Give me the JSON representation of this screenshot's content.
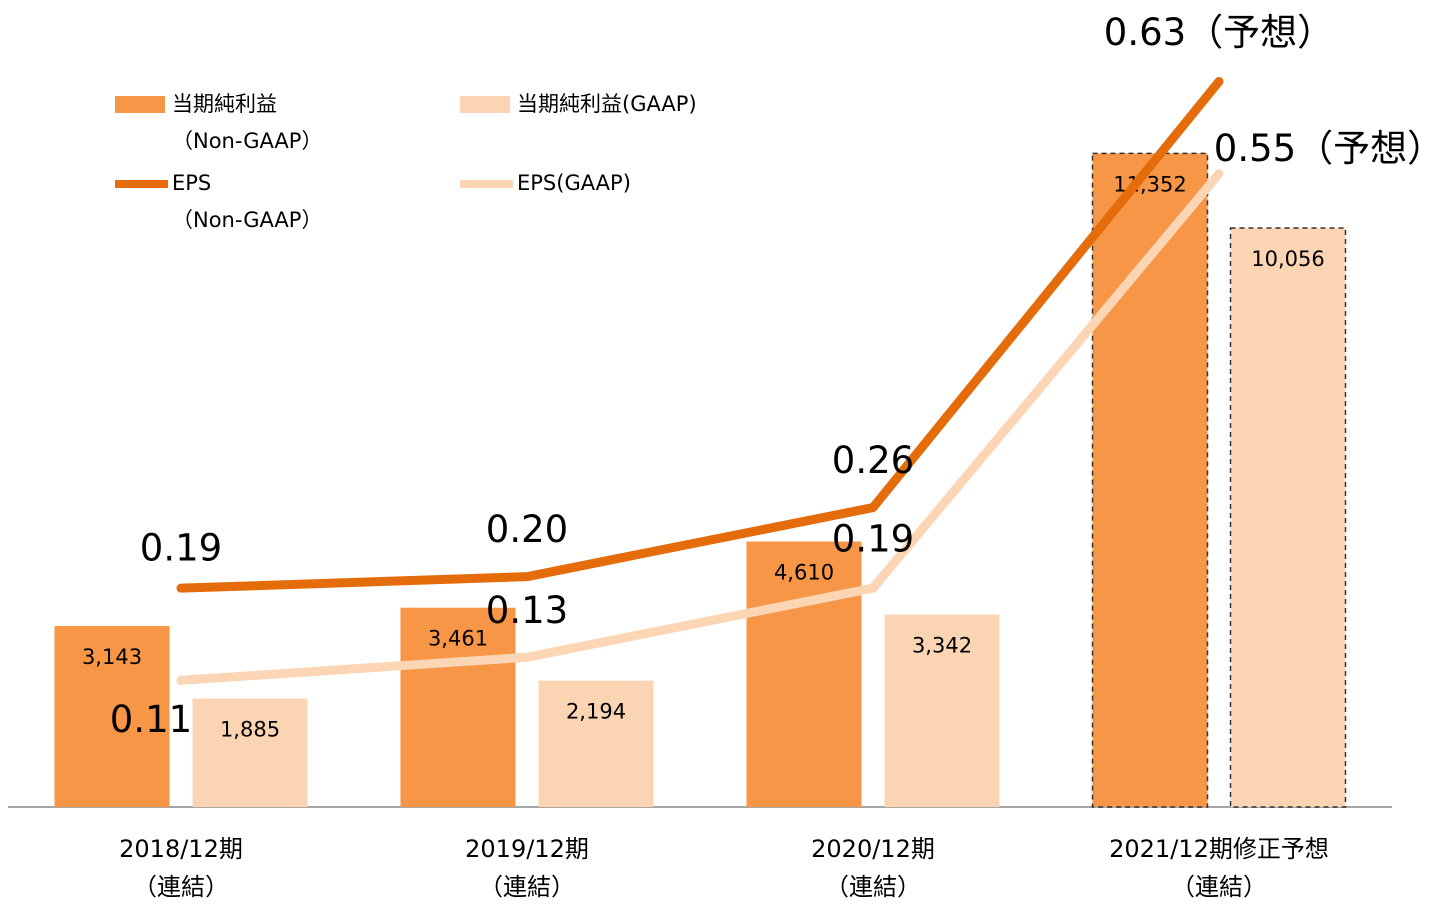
{
  "chart_data": {
    "type": "bar_line",
    "categories": [
      "2018/12期\n（連結）",
      "2019/12期\n（連結）",
      "2020/12期\n（連結）",
      "2021/12期修正予想\n（連結）"
    ],
    "series": [
      {
        "name": "当期純利益\n（Non-GAAP）",
        "type": "bar",
        "color": "#f79646",
        "values": [
          3143,
          3461,
          4610,
          11352
        ],
        "value_labels": [
          "3,143",
          "3,461",
          "4,610",
          "11,352"
        ]
      },
      {
        "name": "当期純利益(GAAP)",
        "type": "bar",
        "color": "#fbd4b4",
        "values": [
          1885,
          2194,
          3342,
          10056
        ],
        "value_labels": [
          "1,885",
          "2,194",
          "3,342",
          "10,056"
        ]
      },
      {
        "name": "EPS\n（Non-GAAP）",
        "type": "line",
        "axis": "y2",
        "color": "#e46c0a",
        "values": [
          0.19,
          0.2,
          0.26,
          0.63
        ],
        "value_labels": [
          "0.19",
          "0.20",
          "0.26",
          "0.63（予想）"
        ]
      },
      {
        "name": "EPS(GAAP)",
        "type": "line",
        "axis": "y2",
        "color": "#fcd5b4",
        "values": [
          0.11,
          0.13,
          0.19,
          0.55
        ],
        "value_labels": [
          "0.11",
          "0.13",
          "0.19",
          "0.55（予想）"
        ]
      }
    ],
    "dashed": [
      false,
      false,
      false,
      true
    ],
    "ylim": [
      0,
      12000
    ],
    "y2lim": [
      0,
      0.6
    ]
  }
}
